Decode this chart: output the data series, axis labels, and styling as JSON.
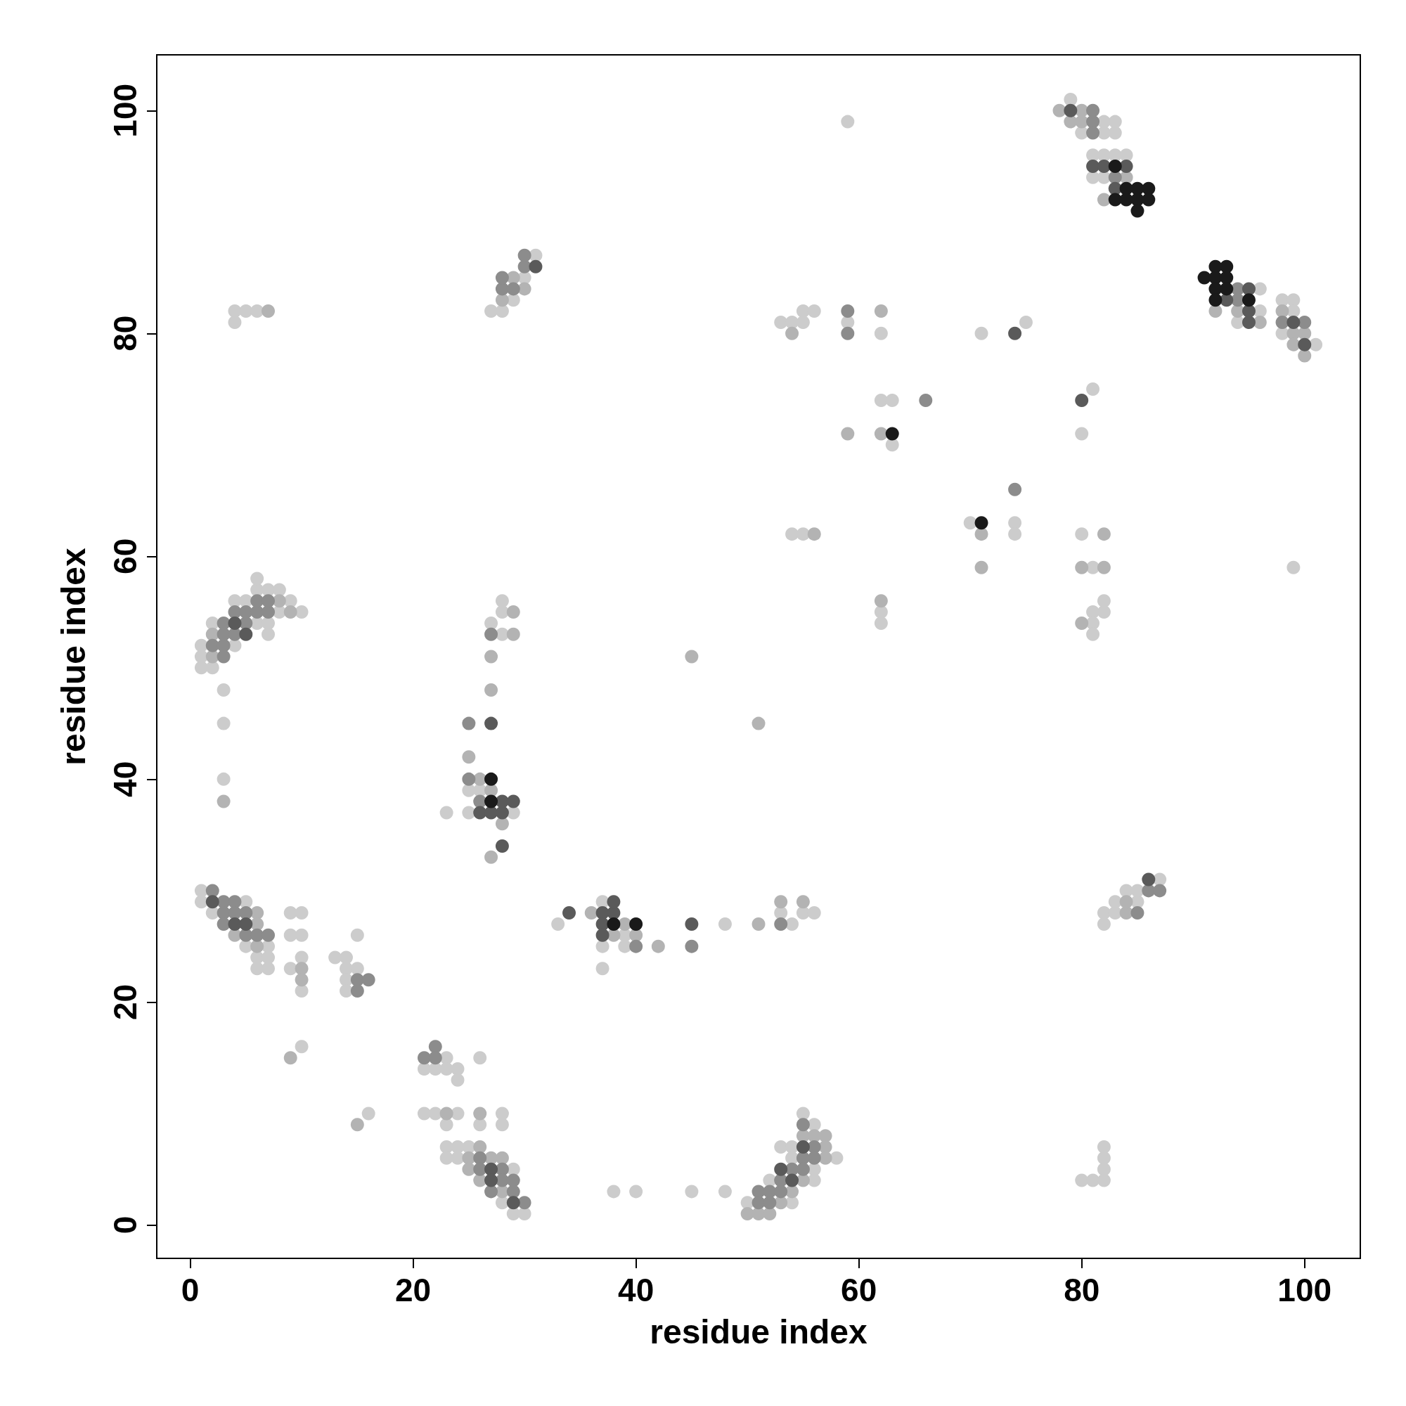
{
  "chart_data": {
    "type": "scatter",
    "xlabel": "residue index",
    "ylabel": "residue index",
    "xlim": [
      -3,
      105
    ],
    "ylim": [
      -3,
      105
    ],
    "xticks": [
      0,
      20,
      40,
      60,
      80,
      100
    ],
    "yticks": [
      0,
      20,
      40,
      60,
      80,
      100
    ],
    "grid": false,
    "marker": "circle",
    "series": [
      {
        "color": "#cccccc",
        "x": [
          1,
          1,
          5,
          2,
          5,
          7,
          6,
          7,
          6,
          7,
          9,
          10,
          9,
          10,
          10,
          9,
          10,
          15,
          13,
          14,
          14,
          15,
          14,
          14,
          10,
          23,
          21,
          22,
          23,
          24,
          24,
          26,
          16,
          21,
          22,
          24,
          28,
          23,
          26,
          28,
          23,
          24,
          25,
          23,
          24,
          29,
          28,
          29,
          30,
          38,
          40,
          45,
          48,
          37,
          33,
          39,
          37,
          39,
          37,
          48,
          53,
          54,
          55,
          56,
          55,
          56,
          53,
          54,
          54,
          58,
          56,
          52,
          56,
          50,
          54,
          80,
          81,
          82,
          82,
          82,
          82,
          82,
          82,
          83,
          83,
          84,
          85,
          85,
          87,
          1,
          2,
          1,
          1,
          4,
          7,
          2,
          6,
          7,
          8,
          10,
          4,
          5,
          9,
          6,
          7,
          8,
          6,
          3,
          3,
          3,
          28,
          28,
          27,
          28,
          25,
          26,
          23,
          25,
          29,
          4,
          5,
          6,
          4,
          27,
          28,
          29,
          30,
          31,
          55,
          56,
          53,
          54,
          55,
          59,
          75,
          62,
          71,
          81,
          62,
          63,
          80,
          63,
          70,
          74,
          54,
          55,
          74,
          80,
          81,
          82,
          62,
          81,
          82,
          62,
          81,
          81,
          59,
          99,
          79,
          82,
          83,
          80,
          82,
          83,
          81,
          82,
          83,
          84,
          81,
          82,
          96,
          96,
          94,
          98,
          99,
          99,
          98,
          101
        ],
        "values": [
          30,
          29,
          29,
          28,
          25,
          25,
          24,
          24,
          23,
          23,
          28,
          28,
          26,
          26,
          24,
          23,
          21,
          26,
          24,
          24,
          23,
          23,
          22,
          21,
          16,
          15,
          14,
          14,
          14,
          14,
          13,
          15,
          10,
          10,
          10,
          10,
          10,
          9,
          9,
          9,
          7,
          7,
          7,
          6,
          6,
          5,
          2,
          1,
          1,
          3,
          3,
          3,
          3,
          29,
          27,
          26,
          25,
          25,
          23,
          27,
          28,
          27,
          28,
          28,
          10,
          9,
          7,
          7,
          6,
          6,
          5,
          4,
          4,
          2,
          2,
          4,
          4,
          4,
          5,
          6,
          7,
          28,
          27,
          28,
          29,
          30,
          29,
          30,
          31,
          50,
          50,
          51,
          52,
          52,
          53,
          54,
          54,
          54,
          55,
          55,
          56,
          56,
          56,
          57,
          57,
          57,
          58,
          48,
          45,
          40,
          56,
          55,
          54,
          53,
          39,
          39,
          37,
          37,
          37,
          82,
          82,
          82,
          81,
          82,
          82,
          83,
          85,
          87,
          82,
          82,
          81,
          81,
          81,
          81,
          81,
          80,
          80,
          75,
          74,
          74,
          71,
          70,
          63,
          63,
          62,
          62,
          62,
          62,
          59,
          56,
          55,
          55,
          55,
          54,
          54,
          53,
          99,
          59,
          101,
          99,
          99,
          98,
          98,
          98,
          96,
          96,
          96,
          96,
          94,
          94,
          84,
          82,
          81,
          83,
          83,
          82,
          80,
          79
        ]
      },
      {
        "color": "#b3b3b3",
        "x": [
          6,
          6,
          4,
          6,
          10,
          10,
          9,
          15,
          23,
          26,
          26,
          25,
          27,
          28,
          25,
          26,
          28,
          36,
          39,
          40,
          42,
          51,
          53,
          55,
          55,
          56,
          57,
          57,
          57,
          55,
          54,
          53,
          50,
          51,
          52,
          84,
          84,
          38,
          2,
          2,
          9,
          8,
          3,
          29,
          29,
          27,
          27,
          25,
          26,
          27,
          28,
          27,
          7,
          28,
          30,
          29,
          62,
          54,
          59,
          62,
          71,
          56,
          82,
          71,
          80,
          82,
          62,
          80,
          45,
          51,
          78,
          80,
          79,
          80,
          84,
          82,
          92,
          94,
          96,
          98,
          99,
          100,
          99,
          100
        ],
        "values": [
          28,
          27,
          26,
          25,
          23,
          22,
          15,
          9,
          10,
          10,
          7,
          6,
          6,
          6,
          5,
          4,
          3,
          28,
          27,
          26,
          25,
          27,
          29,
          29,
          8,
          8,
          8,
          7,
          6,
          4,
          3,
          2,
          1,
          1,
          1,
          28,
          29,
          26,
          51,
          53,
          55,
          56,
          38,
          55,
          53,
          51,
          48,
          42,
          40,
          39,
          36,
          33,
          82,
          83,
          84,
          85,
          82,
          80,
          71,
          71,
          62,
          62,
          62,
          59,
          59,
          59,
          56,
          54,
          51,
          45,
          100,
          100,
          99,
          99,
          94,
          92,
          82,
          82,
          81,
          82,
          80,
          80,
          79,
          78
        ]
      },
      {
        "color": "#8c8c8c",
        "x": [
          2,
          3,
          4,
          3,
          4,
          5,
          3,
          5,
          6,
          7,
          15,
          16,
          15,
          22,
          21,
          22,
          26,
          26,
          28,
          28,
          29,
          27,
          29,
          30,
          40,
          45,
          53,
          55,
          56,
          55,
          56,
          54,
          55,
          53,
          51,
          52,
          53,
          51,
          52,
          85,
          86,
          87,
          3,
          2,
          3,
          3,
          4,
          3,
          5,
          4,
          5,
          6,
          7,
          6,
          7,
          27,
          25,
          25,
          26,
          28,
          29,
          28,
          30,
          30,
          59,
          59,
          66,
          74,
          81,
          81,
          81,
          83,
          94,
          94,
          98,
          100
        ],
        "values": [
          30,
          29,
          29,
          28,
          28,
          28,
          27,
          26,
          26,
          26,
          22,
          22,
          21,
          16,
          15,
          15,
          6,
          5,
          5,
          4,
          4,
          3,
          3,
          2,
          25,
          25,
          27,
          9,
          7,
          6,
          6,
          5,
          5,
          4,
          3,
          3,
          3,
          2,
          2,
          28,
          30,
          30,
          51,
          52,
          52,
          53,
          53,
          54,
          54,
          55,
          55,
          55,
          55,
          56,
          56,
          53,
          45,
          40,
          38,
          84,
          84,
          85,
          86,
          87,
          82,
          80,
          74,
          66,
          100,
          99,
          98,
          94,
          84,
          83,
          81,
          81
        ]
      },
      {
        "color": "#5a5a5a",
        "x": [
          2,
          4,
          5,
          27,
          27,
          29,
          34,
          37,
          38,
          37,
          45,
          37,
          38,
          53,
          54,
          86,
          5,
          4,
          27,
          28,
          29,
          26,
          27,
          28,
          28,
          31,
          74,
          80,
          79,
          81,
          82,
          84,
          83,
          93,
          95,
          95,
          95,
          99,
          100,
          55
        ],
        "values": [
          29,
          27,
          27,
          5,
          4,
          2,
          28,
          28,
          28,
          27,
          27,
          26,
          29,
          5,
          4,
          31,
          53,
          54,
          45,
          38,
          38,
          37,
          37,
          37,
          34,
          86,
          80,
          74,
          100,
          95,
          95,
          95,
          93,
          83,
          84,
          82,
          81,
          81,
          79,
          7
        ]
      },
      {
        "color": "#1a1a1a",
        "x": [
          40,
          38,
          27,
          27,
          63,
          71,
          83,
          84,
          85,
          86,
          83,
          84,
          85,
          86,
          85,
          92,
          93,
          91,
          92,
          93,
          92,
          93,
          92,
          95
        ],
        "values": [
          27,
          27,
          40,
          38,
          71,
          63,
          95,
          93,
          93,
          93,
          92,
          92,
          92,
          92,
          91,
          86,
          86,
          85,
          85,
          85,
          84,
          84,
          83,
          83
        ]
      }
    ]
  }
}
